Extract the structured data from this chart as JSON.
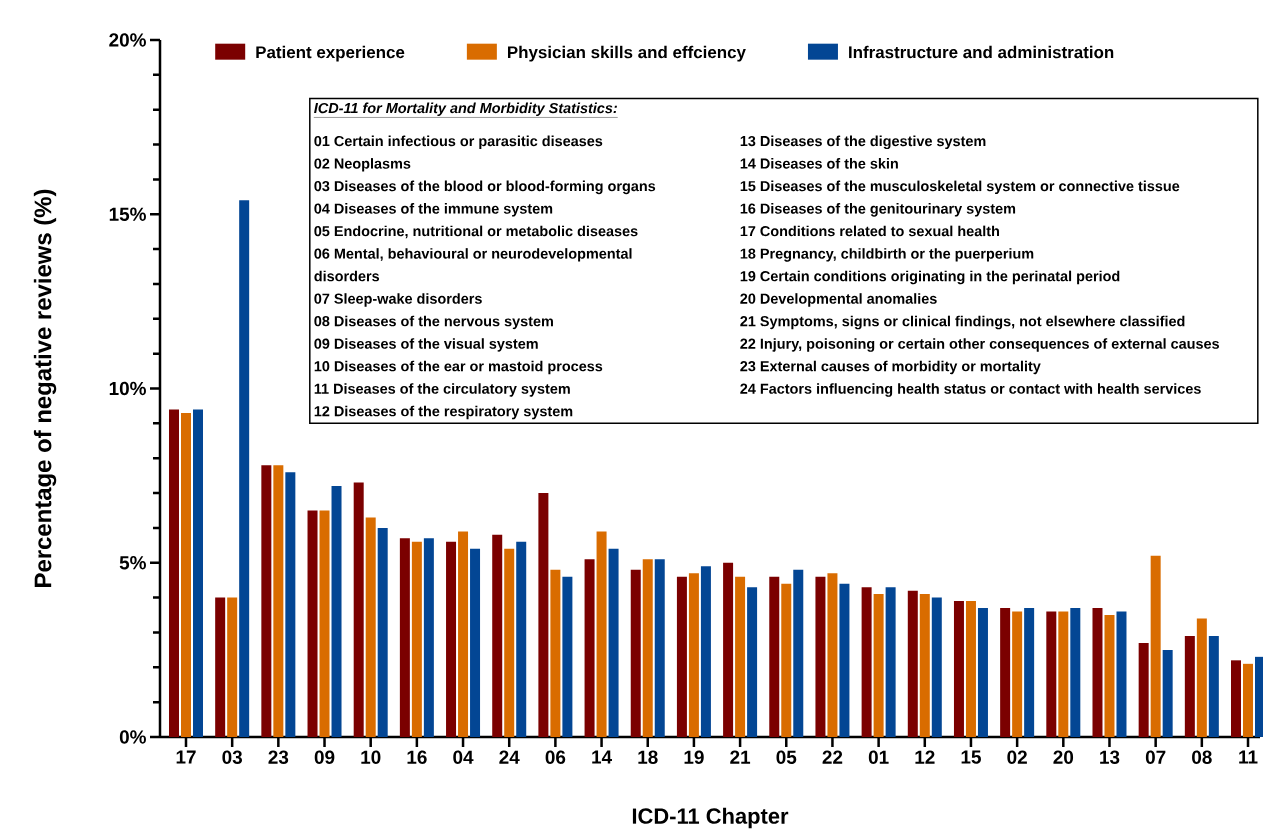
{
  "chart_data": {
    "type": "bar",
    "xlabel": "ICD-11 Chapter",
    "ylabel": "Percentage of negative reviews (%)",
    "categories": [
      "17",
      "03",
      "23",
      "09",
      "10",
      "16",
      "04",
      "24",
      "06",
      "14",
      "18",
      "19",
      "21",
      "05",
      "22",
      "01",
      "12",
      "15",
      "02",
      "20",
      "13",
      "07",
      "08",
      "11"
    ],
    "series": [
      {
        "name": "Patient experience",
        "color": "#7b0000",
        "values": [
          9.4,
          4.0,
          7.8,
          6.5,
          7.3,
          5.7,
          5.6,
          5.8,
          7.0,
          5.1,
          4.8,
          4.6,
          5.0,
          4.6,
          4.6,
          4.3,
          4.2,
          3.9,
          3.7,
          3.6,
          3.7,
          2.7,
          2.9,
          2.2
        ]
      },
      {
        "name": "Physician skills and effciency",
        "color": "#d96c00",
        "values": [
          9.3,
          4.0,
          7.8,
          6.5,
          6.3,
          5.6,
          5.9,
          5.4,
          4.8,
          5.9,
          5.1,
          4.7,
          4.6,
          4.4,
          4.7,
          4.1,
          4.1,
          3.9,
          3.6,
          3.6,
          3.5,
          5.2,
          3.4,
          2.1
        ]
      },
      {
        "name": "Infrastructure and administration",
        "color": "#034694",
        "values": [
          9.4,
          15.4,
          7.6,
          7.2,
          6.0,
          5.7,
          5.4,
          5.6,
          4.6,
          5.4,
          5.1,
          4.9,
          4.3,
          4.8,
          4.4,
          4.3,
          4.0,
          3.7,
          3.7,
          3.7,
          3.6,
          2.5,
          2.9,
          2.3
        ]
      }
    ],
    "ylim": [
      0,
      20
    ],
    "yticks": [
      {
        "value": 0,
        "label": "0%"
      },
      {
        "value": 1,
        "label": null
      },
      {
        "value": 2,
        "label": null
      },
      {
        "value": 3,
        "label": null
      },
      {
        "value": 4,
        "label": null
      },
      {
        "value": 5,
        "label": "5%"
      },
      {
        "value": 6,
        "label": null
      },
      {
        "value": 7,
        "label": null
      },
      {
        "value": 8,
        "label": null
      },
      {
        "value": 9,
        "label": null
      },
      {
        "value": 10,
        "label": "10%"
      },
      {
        "value": 11,
        "label": null
      },
      {
        "value": 12,
        "label": null
      },
      {
        "value": 13,
        "label": null
      },
      {
        "value": 14,
        "label": null
      },
      {
        "value": 15,
        "label": "15%"
      },
      {
        "value": 16,
        "label": null
      },
      {
        "value": 17,
        "label": null
      },
      {
        "value": 18,
        "label": null
      },
      {
        "value": 19,
        "label": null
      },
      {
        "value": 20,
        "label": "20%"
      }
    ],
    "legend": "top",
    "annotations": [
      "ICD-11 for Mortality and Morbidity Statistics:",
      "01 Certain infectious or parasitic diseases",
      "02 Neoplasms",
      "03 Diseases of the blood or blood-forming organs",
      "04 Diseases of the immune system",
      "05 Endocrine, nutritional or metabolic diseases",
      "06 Mental, behavioural or neurodevelopmental disorders",
      "07 Sleep-wake disorders",
      "08 Diseases of the nervous system",
      "09 Diseases of the visual system",
      "10 Diseases of the ear or mastoid process",
      "11 Diseases of the circulatory system",
      "12 Diseases of the respiratory system",
      "13 Diseases of the digestive system",
      "14 Diseases of the skin",
      "15 Diseases of the musculoskeletal system or connective tissue",
      "16 Diseases of the genitourinary system",
      "17 Conditions related to sexual health",
      "18 Pregnancy, childbirth or the puerperium",
      "19 Certain conditions originating in the perinatal period",
      "20 Developmental anomalies",
      "21 Symptoms, signs or clinical findings, not elsewhere classified",
      "22 Injury, poisoning or certain other consequences of external causes",
      "23 External causes of morbidity or mortality",
      "24 Factors influencing health status or contact with health services"
    ]
  }
}
